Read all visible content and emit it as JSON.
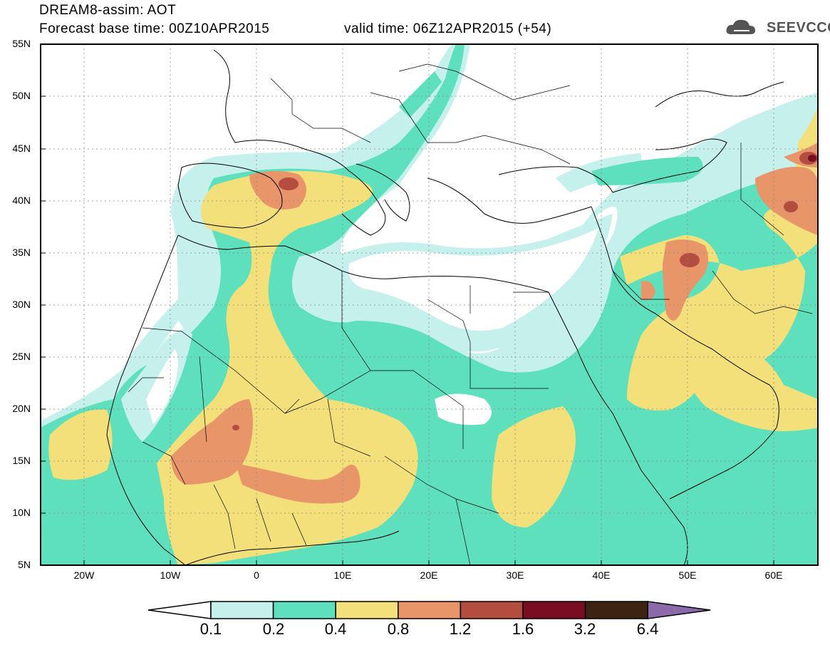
{
  "header": {
    "title_line1": "DREAM8-assim: AOT",
    "title_line2": "Forecast base time: 00Z10APR2015",
    "valid_time": "valid time: 06Z12APR2015 (+54)",
    "logo_text": "SEEVCCC"
  },
  "map": {
    "lat_labels": [
      "55N",
      "50N",
      "45N",
      "40N",
      "35N",
      "30N",
      "25N",
      "20N",
      "15N",
      "10N",
      "5N"
    ],
    "lon_labels": [
      "20W",
      "10W",
      "0",
      "10E",
      "20E",
      "30E",
      "40E",
      "50E",
      "60E"
    ],
    "lon_range": [
      -25,
      65
    ],
    "lat_range": [
      5,
      55
    ]
  },
  "colorbar": {
    "labels": [
      "0.1",
      "0.2",
      "0.4",
      "0.8",
      "1.2",
      "1.6",
      "3.2",
      "6.4"
    ],
    "colors": [
      "#ffffff",
      "#c6f0ec",
      "#5ee0bd",
      "#f4e07a",
      "#e8956a",
      "#b34d3f",
      "#7a0d22",
      "#3d2412",
      "#8c6aaa"
    ]
  }
}
